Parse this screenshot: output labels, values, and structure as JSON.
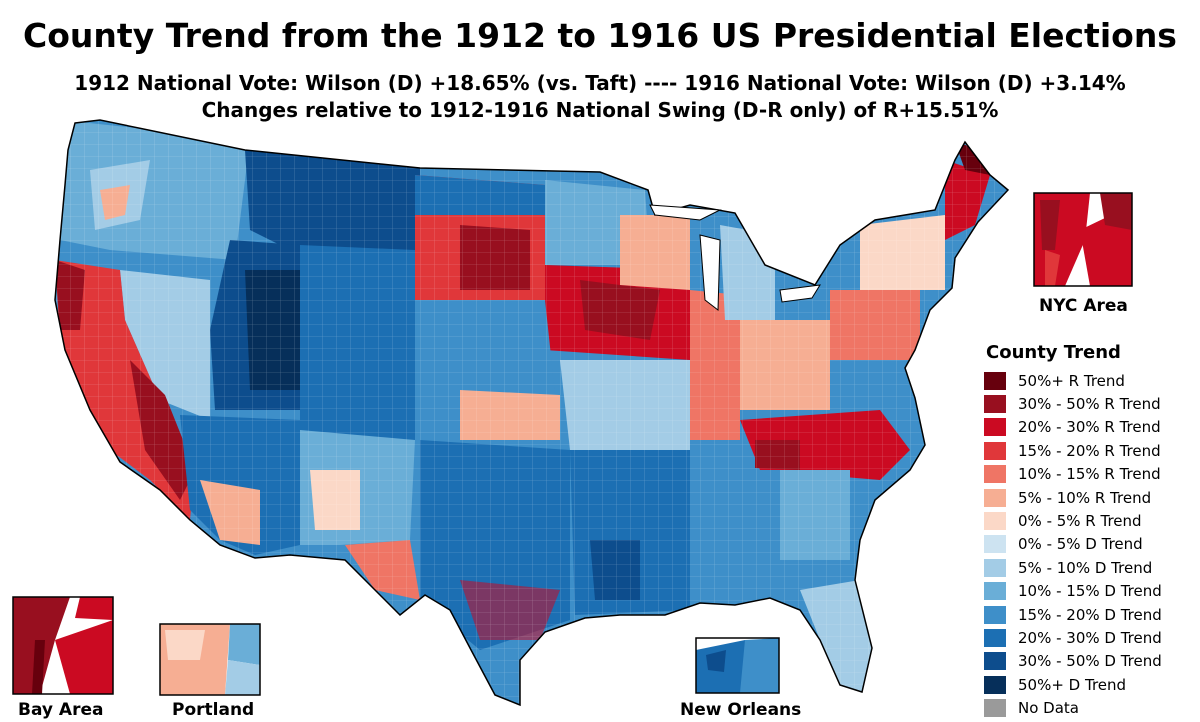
{
  "title": "County Trend from the 1912 to 1916 US Presidential Elections",
  "subtitle_1": "1912 National Vote: Wilson (D) +18.65% (vs. Taft) ---- 1916 National Vote: Wilson (D) +3.14%",
  "subtitle_2": "Changes relative to 1912-1916 National Swing (D-R only) of R+15.51%",
  "legend": {
    "title": "County Trend",
    "items": [
      {
        "label": "50%+ R Trend",
        "color": "#67000d"
      },
      {
        "label": "30% - 50% R Trend",
        "color": "#980f1f"
      },
      {
        "label": "20% - 30% R Trend",
        "color": "#cb0a22"
      },
      {
        "label": "15% - 20% R Trend",
        "color": "#e0373a"
      },
      {
        "label": "10% - 15% R Trend",
        "color": "#ef7565"
      },
      {
        "label": "5% - 10% R Trend",
        "color": "#f6ae93"
      },
      {
        "label": "0% - 5% R Trend",
        "color": "#fbd8c7"
      },
      {
        "label": "0% - 5% D Trend",
        "color": "#cde3f1"
      },
      {
        "label": "5% - 10% D Trend",
        "color": "#a3cce6"
      },
      {
        "label": "10% - 15% D Trend",
        "color": "#6aaed7"
      },
      {
        "label": "15% - 20% D Trend",
        "color": "#3e8fc9"
      },
      {
        "label": "20% - 30% D Trend",
        "color": "#1c6fb3"
      },
      {
        "label": "30% - 50% D Trend",
        "color": "#0d4d8d"
      },
      {
        "label": "50%+ D Trend",
        "color": "#062f5a"
      },
      {
        "label": "No Data",
        "color": "#9a9a9a"
      }
    ]
  },
  "insets": {
    "nyc": "NYC Area",
    "bay_area": "Bay Area",
    "portland": "Portland",
    "new_orleans": "New Orleans"
  }
}
